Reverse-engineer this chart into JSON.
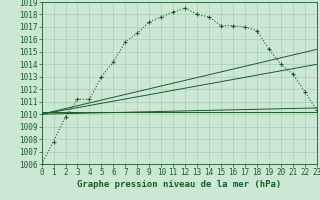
{
  "title": "Graphe pression niveau de la mer (hPa)",
  "xlabel": "Graphe pression niveau de la mer (hPa)",
  "background_color": "#cce8d4",
  "grid_color": "#aacfb8",
  "line_color": "#1a5c28",
  "xlim": [
    0,
    23
  ],
  "ylim": [
    1006,
    1019
  ],
  "xticks": [
    0,
    1,
    2,
    3,
    4,
    5,
    6,
    7,
    8,
    9,
    10,
    11,
    12,
    13,
    14,
    15,
    16,
    17,
    18,
    19,
    20,
    21,
    22,
    23
  ],
  "yticks": [
    1006,
    1007,
    1008,
    1009,
    1010,
    1011,
    1012,
    1013,
    1014,
    1015,
    1016,
    1017,
    1018,
    1019
  ],
  "series_main": {
    "x": [
      0,
      1,
      2,
      3,
      4,
      5,
      6,
      7,
      8,
      9,
      10,
      11,
      12,
      13,
      14,
      15,
      16,
      17,
      18,
      19,
      20,
      21,
      22,
      23
    ],
    "y": [
      1006.0,
      1007.8,
      1009.8,
      1011.2,
      1011.2,
      1013.0,
      1014.2,
      1015.8,
      1016.5,
      1017.4,
      1017.8,
      1018.2,
      1018.5,
      1018.0,
      1017.8,
      1017.1,
      1017.1,
      1017.0,
      1016.7,
      1015.2,
      1014.0,
      1013.2,
      1011.8,
      1010.3
    ]
  },
  "series_line1": {
    "x": [
      0,
      23
    ],
    "y": [
      1010.2,
      1010.2
    ]
  },
  "series_line2": {
    "x": [
      0,
      23
    ],
    "y": [
      1010.0,
      1010.5
    ]
  },
  "series_diag1": {
    "x": [
      0,
      23
    ],
    "y": [
      1010.0,
      1015.2
    ]
  },
  "series_diag2": {
    "x": [
      0,
      23
    ],
    "y": [
      1010.0,
      1014.0
    ]
  },
  "tick_fontsize": 5.5,
  "xlabel_fontsize": 6.5
}
